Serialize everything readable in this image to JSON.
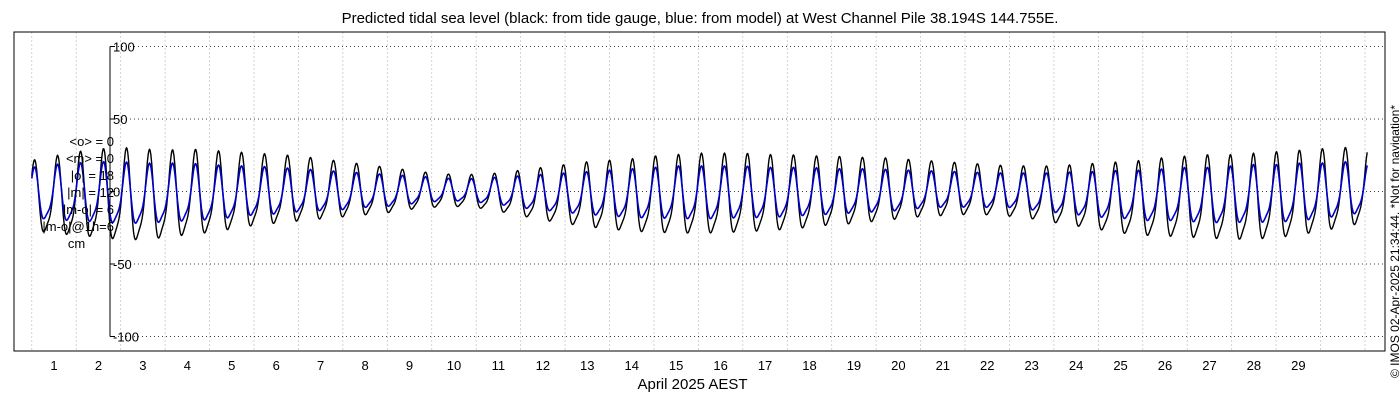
{
  "chart_data": {
    "type": "line",
    "title": "Predicted tidal sea level (black: from tide gauge, blue: from model) at West Channel Pile 38.194S 144.755E.",
    "xlabel": "April 2025 AEST",
    "ylabel": "cm",
    "xlim": [
      -0.4,
      30.45
    ],
    "ylim": [
      -110,
      110
    ],
    "yticks": [
      100,
      50,
      0,
      -50,
      -100
    ],
    "ytick_labels": [
      "100",
      "50",
      "0",
      "-50",
      "-100"
    ],
    "xticks": [
      1,
      2,
      3,
      4,
      5,
      6,
      7,
      8,
      9,
      10,
      11,
      12,
      13,
      14,
      15,
      16,
      17,
      18,
      19,
      20,
      21,
      22,
      23,
      24,
      25,
      26,
      27,
      28,
      29
    ],
    "xtick_labels": [
      "1",
      "2",
      "3",
      "4",
      "5",
      "6",
      "7",
      "8",
      "9",
      "10",
      "11",
      "12",
      "13",
      "14",
      "15",
      "16",
      "17",
      "18",
      "19",
      "20",
      "21",
      "22",
      "23",
      "24",
      "25",
      "26",
      "27",
      "28",
      "29"
    ],
    "grid": true,
    "series": [
      {
        "name": "tide gauge",
        "color": "#000000",
        "x": [
          0,
          0.5,
          1,
          1.5,
          2,
          2.5,
          3,
          3.5,
          4,
          4.5,
          5,
          5.5,
          6,
          6.5,
          7,
          7.5,
          8,
          8.5,
          9,
          9.5,
          10,
          10.5,
          11,
          11.5,
          12,
          12.5,
          13,
          13.5,
          14,
          14.5,
          15,
          15.5,
          16,
          16.5,
          17,
          17.5,
          18,
          18.5,
          19,
          19.5,
          20,
          20.5,
          21,
          21.5,
          22,
          22.5,
          23,
          23.5,
          24,
          24.5,
          25,
          25.5,
          26,
          26.5,
          27,
          27.5,
          28,
          28.5,
          29,
          29.5,
          30
        ],
        "high": [
          22,
          25,
          28,
          30,
          31,
          30,
          29,
          30,
          29,
          28,
          27,
          26,
          25,
          23,
          21,
          19,
          17,
          15,
          13,
          12,
          12,
          13,
          15,
          17,
          19,
          21,
          22,
          23,
          25,
          26,
          27,
          27,
          27,
          26,
          26,
          25,
          25,
          24,
          24,
          23,
          22,
          21,
          20,
          19,
          18,
          18,
          18,
          19,
          20,
          21,
          22,
          24,
          25,
          26,
          26,
          27,
          28,
          29,
          30,
          31,
          30
        ],
        "low": [
          -35,
          -38,
          -40,
          -42,
          -44,
          -44,
          -42,
          -40,
          -38,
          -35,
          -32,
          -30,
          -28,
          -26,
          -24,
          -22,
          -20,
          -17,
          -15,
          -14,
          -15,
          -18,
          -22,
          -26,
          -29,
          -32,
          -34,
          -36,
          -37,
          -38,
          -38,
          -38,
          -37,
          -36,
          -35,
          -33,
          -31,
          -30,
          -28,
          -26,
          -24,
          -23,
          -22,
          -22,
          -23,
          -25,
          -28,
          -31,
          -34,
          -37,
          -39,
          -40,
          -41,
          -42,
          -43,
          -43,
          -42,
          -40,
          -37,
          -34,
          -30
        ]
      },
      {
        "name": "model",
        "color": "#0000cc",
        "x": [
          0,
          0.5,
          1,
          1.5,
          2,
          2.5,
          3,
          3.5,
          4,
          4.5,
          5,
          5.5,
          6,
          6.5,
          7,
          7.5,
          8,
          8.5,
          9,
          9.5,
          10,
          10.5,
          11,
          11.5,
          12,
          12.5,
          13,
          13.5,
          14,
          14.5,
          15,
          15.5,
          16,
          16.5,
          17,
          17.5,
          18,
          18.5,
          19,
          19.5,
          20,
          20.5,
          21,
          21.5,
          22,
          22.5,
          23,
          23.5,
          24,
          24.5,
          25,
          25.5,
          26,
          26.5,
          27,
          27.5,
          28,
          28.5,
          29,
          29.5,
          30
        ],
        "high": [
          17,
          19,
          20,
          21,
          21,
          20,
          20,
          20,
          19,
          18,
          18,
          17,
          16,
          15,
          14,
          13,
          12,
          11,
          10,
          9,
          9,
          10,
          11,
          12,
          13,
          14,
          15,
          16,
          17,
          18,
          18,
          18,
          18,
          17,
          17,
          17,
          16,
          16,
          16,
          15,
          15,
          14,
          14,
          13,
          13,
          13,
          13,
          14,
          14,
          15,
          15,
          16,
          17,
          17,
          18,
          19,
          19,
          20,
          20,
          21,
          20
        ],
        "low": [
          -24,
          -26,
          -27,
          -28,
          -29,
          -29,
          -28,
          -27,
          -26,
          -24,
          -22,
          -21,
          -19,
          -18,
          -17,
          -15,
          -14,
          -12,
          -10,
          -9,
          -10,
          -12,
          -15,
          -17,
          -19,
          -21,
          -22,
          -24,
          -24,
          -25,
          -25,
          -25,
          -24,
          -24,
          -23,
          -22,
          -21,
          -20,
          -19,
          -18,
          -16,
          -15,
          -15,
          -15,
          -15,
          -17,
          -19,
          -21,
          -23,
          -24,
          -26,
          -26,
          -27,
          -28,
          -28,
          -28,
          -28,
          -27,
          -25,
          -23,
          -20
        ]
      }
    ]
  },
  "stats": {
    "mean_o": "<o> = 0",
    "mean_m": "<m> = 0",
    "abs_o": "|o| = 18",
    "abs_m": "|m| = 12",
    "abs_mo": "|m-o| = 6",
    "abs_mo_1h": "|m-o|@1h=6",
    "unit": "cm"
  },
  "credit": "© IMOS 02-Apr-2025 21:34:44. *Not for navigation*"
}
